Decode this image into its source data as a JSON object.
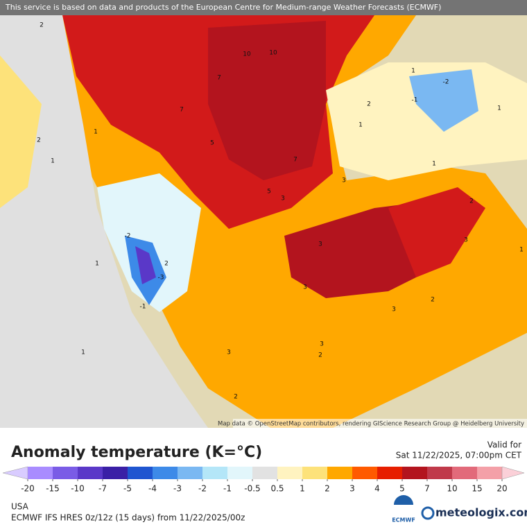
{
  "banner": "This service is based on data and products of the European Centre for Medium-range Weather Forecasts (ECMWF)",
  "attribution": "Map data © OpenStreetMap contributors, rendering GIScience Research Group @ Heidelberg University",
  "map_labels": [
    10,
    10,
    7,
    7,
    5,
    5,
    7,
    3,
    3,
    2,
    2,
    2,
    1,
    1,
    1,
    -2,
    -1,
    1,
    3,
    3,
    2,
    3,
    3,
    2,
    2,
    1,
    1,
    -1,
    -2,
    -3,
    2,
    1,
    3,
    3,
    2,
    1,
    1
  ],
  "title": "Anomaly temperature (K=°C)",
  "valid_label": "Valid for",
  "valid_time": "Sat 11/22/2025, 07:00pm CET",
  "colorbar": {
    "ticks": [
      -20,
      -15,
      -10,
      -7,
      -5,
      -4,
      -3,
      -2,
      -1,
      -0.5,
      0.5,
      1,
      2,
      3,
      4,
      5,
      7,
      10,
      15,
      20
    ],
    "colors": [
      "#d9ccff",
      "#a98cff",
      "#7a5ce6",
      "#5a38c8",
      "#3a1fa6",
      "#1f55d0",
      "#3d8ae8",
      "#7ab8f2",
      "#b4e6f8",
      "#e2f6fb",
      "#e2e2e2",
      "#fff3c0",
      "#fde27a",
      "#ffa800",
      "#ff5a00",
      "#e61e00",
      "#b3141e",
      "#c0394a",
      "#e26a7a",
      "#f4a0a8",
      "#fbd0d8"
    ]
  },
  "region": "USA",
  "model": "ECMWF IFS HRES 0z/12z (15 days) from 11/22/2025/00z",
  "ecmwf_logo": "ECMWF",
  "brand": "meteologix.com"
}
